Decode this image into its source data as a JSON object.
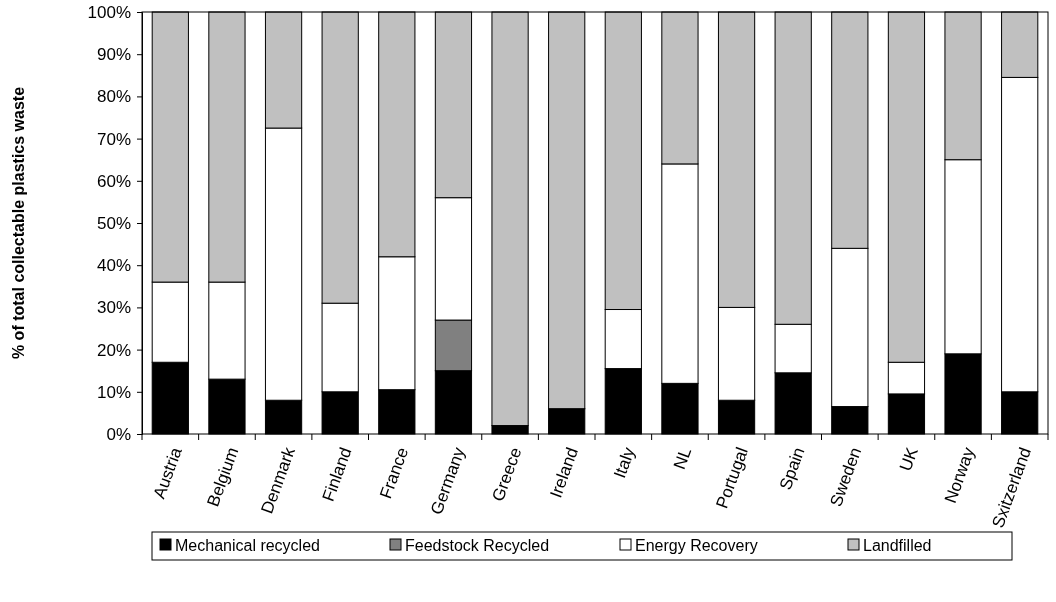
{
  "chart_data": {
    "type": "bar",
    "stacked": true,
    "ylabel": "% of total collectable plastics waste",
    "categories": [
      "Austria",
      "Belgium",
      "Denmark",
      "Finland",
      "France",
      "Germany",
      "Greece",
      "Ireland",
      "Italy",
      "NL",
      "Portugal",
      "Spain",
      "Sweden",
      "UK",
      "Norway",
      "Sxitzerland"
    ],
    "series": [
      {
        "name": "Mechanical recycled",
        "color": "#000000",
        "values": [
          17,
          13,
          8,
          10,
          10.5,
          15,
          2,
          6,
          15.5,
          12,
          8,
          14.5,
          6.5,
          9.5,
          19,
          10
        ]
      },
      {
        "name": "Feedstock Recycled",
        "color": "#808080",
        "values": [
          0,
          0,
          0,
          0,
          0,
          12,
          0,
          0,
          0,
          0,
          0,
          0,
          0,
          0,
          0,
          0
        ]
      },
      {
        "name": "Energy Recovery",
        "color": "#ffffff",
        "values": [
          19,
          23,
          64.5,
          21,
          31.5,
          29,
          0,
          0,
          14,
          52,
          22,
          11.5,
          37.5,
          7.5,
          46,
          74.5
        ]
      },
      {
        "name": "Landfilled",
        "color": "#c0c0c0",
        "values": [
          64,
          64,
          27.5,
          69,
          58,
          44,
          98,
          94,
          70.5,
          36,
          70,
          74,
          56,
          83,
          35,
          15.5
        ]
      }
    ],
    "ylim": [
      0,
      100
    ],
    "yticks": [
      {
        "value": 0,
        "label": "0%"
      },
      {
        "value": 10,
        "label": "10%"
      },
      {
        "value": 20,
        "label": "20%"
      },
      {
        "value": 30,
        "label": "30%"
      },
      {
        "value": 40,
        "label": "40%"
      },
      {
        "value": 50,
        "label": "50%"
      },
      {
        "value": 60,
        "label": "60%"
      },
      {
        "value": 70,
        "label": "70%"
      },
      {
        "value": 80,
        "label": "80%"
      },
      {
        "value": 90,
        "label": "90%"
      },
      {
        "value": 100,
        "label": "100%"
      }
    ],
    "legend": "bottom"
  }
}
